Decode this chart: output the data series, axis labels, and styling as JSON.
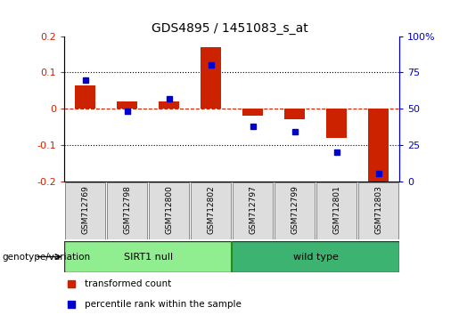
{
  "title": "GDS4895 / 1451083_s_at",
  "samples": [
    "GSM712769",
    "GSM712798",
    "GSM712800",
    "GSM712802",
    "GSM712797",
    "GSM712799",
    "GSM712801",
    "GSM712803"
  ],
  "red_values": [
    0.065,
    0.02,
    0.02,
    0.17,
    -0.02,
    -0.03,
    -0.08,
    -0.215
  ],
  "blue_values_raw": [
    70,
    48,
    57,
    80,
    38,
    34,
    20,
    5
  ],
  "groups": [
    {
      "label": "SIRT1 null",
      "color": "#90EE90",
      "start": 0,
      "end": 4
    },
    {
      "label": "wild type",
      "color": "#3CB371",
      "start": 4,
      "end": 8
    }
  ],
  "ylim_left": [
    -0.2,
    0.2
  ],
  "ylim_right": [
    0,
    100
  ],
  "red_color": "#CC2200",
  "blue_color": "#0000CC",
  "zero_line_color": "#CC2200",
  "grid_color": "#000000",
  "bar_width": 0.35,
  "group_label": "genotype/variation",
  "legend_red": "transformed count",
  "legend_blue": "percentile rank within the sample",
  "right_yticks": [
    0,
    25,
    50,
    75,
    100
  ],
  "right_yticklabels": [
    "0",
    "25",
    "50",
    "75",
    "100%"
  ],
  "left_yticks": [
    -0.2,
    -0.1,
    0.0,
    0.1,
    0.2
  ],
  "left_yticklabels": [
    "-0.2",
    "-0.1",
    "0",
    "0.1",
    "0.2"
  ]
}
